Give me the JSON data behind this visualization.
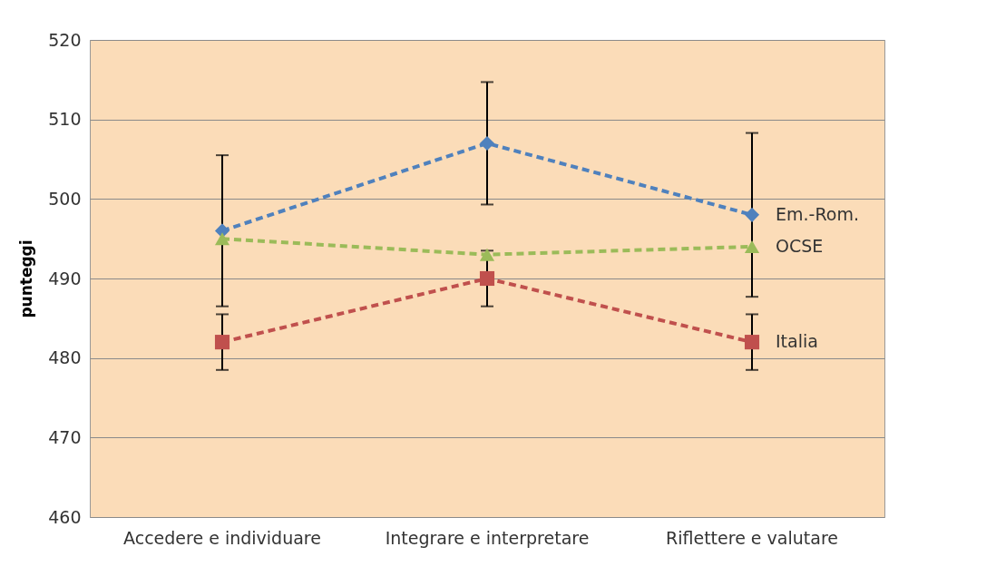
{
  "chart_data": {
    "type": "line",
    "ylabel": "punteggi",
    "categories": [
      "Accedere e individuare",
      "Integrare e interpretare",
      "Riflettere e valutare"
    ],
    "ylim": [
      460,
      520
    ],
    "yticks": [
      460,
      470,
      480,
      490,
      500,
      510,
      520
    ],
    "grid": "y",
    "legend": false,
    "line_style": "dashed",
    "series": [
      {
        "name": "Em.-Rom.",
        "color": "#4f81bd",
        "marker": "diamond",
        "values": [
          496,
          507,
          498
        ],
        "errors": [
          9.5,
          7.7,
          10.3
        ]
      },
      {
        "name": "OCSE",
        "color": "#9bbb59",
        "marker": "triangle",
        "values": [
          495,
          493,
          494
        ]
      },
      {
        "name": "Italia",
        "color": "#c0504d",
        "marker": "square",
        "values": [
          482,
          490,
          482
        ],
        "errors": [
          3.5,
          3.5,
          3.5
        ]
      }
    ]
  }
}
